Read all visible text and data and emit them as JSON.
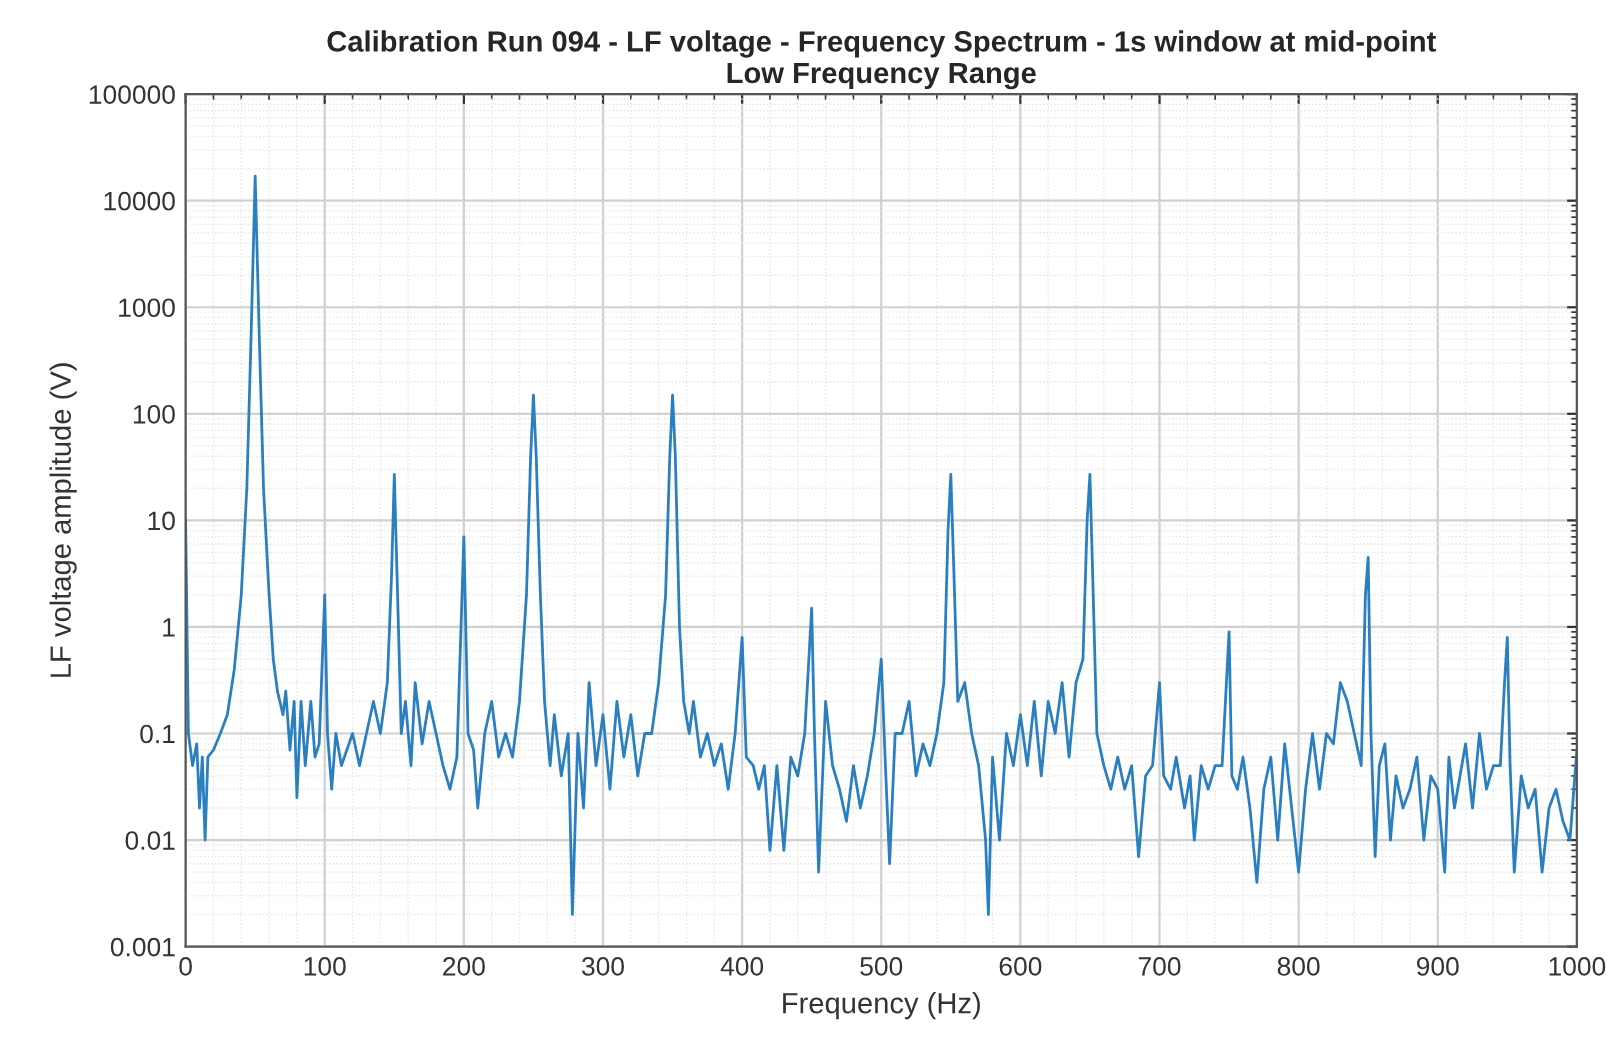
{
  "chart_data": {
    "type": "line",
    "title": "Calibration Run 094 - LF voltage - Frequency Spectrum - 1s window at mid-point\nLow Frequency Range",
    "xlabel": "Frequency (Hz)",
    "ylabel": "LF voltage amplitude (V)",
    "log": "y",
    "grid": true,
    "xlim": [
      0,
      1000
    ],
    "xticks": [
      0,
      100,
      200,
      300,
      400,
      500,
      600,
      700,
      800,
      900,
      1000
    ],
    "ylim": [
      0.001,
      100000
    ],
    "yticks": [
      0.001,
      0.01,
      0.1,
      1,
      10,
      100,
      1000,
      10000,
      100000
    ],
    "series": [
      {
        "color": "#2a7fc1",
        "line_style": "solid",
        "x": [
          0,
          2,
          5,
          8,
          10,
          12,
          14,
          16,
          20,
          25,
          30,
          35,
          40,
          44,
          47,
          50,
          53,
          56,
          60,
          63,
          66,
          70,
          72,
          75,
          78,
          80,
          83,
          86,
          90,
          93,
          96,
          100,
          102,
          105,
          108,
          112,
          120,
          125,
          130,
          135,
          140,
          145,
          148,
          150,
          152,
          155,
          158,
          162,
          165,
          170,
          175,
          180,
          185,
          190,
          195,
          200,
          203,
          207,
          210,
          215,
          220,
          225,
          230,
          235,
          240,
          245,
          248,
          250,
          252,
          255,
          258,
          262,
          265,
          270,
          275,
          278,
          282,
          286,
          290,
          295,
          300,
          305,
          310,
          315,
          320,
          325,
          330,
          335,
          340,
          345,
          348,
          350,
          352,
          355,
          358,
          362,
          365,
          370,
          375,
          380,
          385,
          390,
          395,
          400,
          403,
          408,
          412,
          416,
          420,
          425,
          430,
          435,
          440,
          445,
          450,
          452,
          455,
          460,
          465,
          470,
          475,
          480,
          485,
          490,
          495,
          500,
          503,
          506,
          510,
          515,
          520,
          525,
          530,
          535,
          540,
          545,
          548,
          550,
          552,
          555,
          560,
          565,
          570,
          575,
          577,
          580,
          585,
          590,
          595,
          600,
          605,
          610,
          615,
          620,
          625,
          630,
          635,
          640,
          645,
          648,
          650,
          652,
          655,
          660,
          665,
          670,
          675,
          680,
          685,
          690,
          695,
          700,
          703,
          708,
          712,
          718,
          722,
          725,
          730,
          735,
          740,
          745,
          750,
          752,
          756,
          760,
          765,
          770,
          775,
          780,
          785,
          790,
          795,
          800,
          805,
          810,
          815,
          820,
          825,
          830,
          835,
          840,
          845,
          848,
          850,
          852,
          855,
          858,
          862,
          866,
          870,
          875,
          880,
          885,
          890,
          895,
          900,
          905,
          908,
          912,
          916,
          920,
          925,
          930,
          935,
          940,
          945,
          948,
          950,
          952,
          955,
          960,
          965,
          970,
          975,
          980,
          985,
          990,
          995,
          1000
        ],
        "values": [
          10,
          0.1,
          0.05,
          0.08,
          0.02,
          0.06,
          0.01,
          0.06,
          0.07,
          0.1,
          0.15,
          0.4,
          2,
          20,
          500,
          17000,
          500,
          20,
          2,
          0.5,
          0.25,
          0.15,
          0.25,
          0.07,
          0.2,
          0.025,
          0.2,
          0.05,
          0.2,
          0.06,
          0.08,
          2,
          0.1,
          0.03,
          0.1,
          0.05,
          0.1,
          0.05,
          0.1,
          0.2,
          0.1,
          0.3,
          3,
          27,
          3,
          0.1,
          0.2,
          0.05,
          0.3,
          0.08,
          0.2,
          0.1,
          0.05,
          0.03,
          0.06,
          7,
          0.1,
          0.07,
          0.02,
          0.1,
          0.2,
          0.06,
          0.1,
          0.06,
          0.2,
          2,
          40,
          150,
          40,
          2,
          0.2,
          0.05,
          0.15,
          0.04,
          0.1,
          0.002,
          0.1,
          0.02,
          0.3,
          0.05,
          0.15,
          0.03,
          0.2,
          0.06,
          0.15,
          0.04,
          0.1,
          0.1,
          0.3,
          2,
          40,
          150,
          40,
          1,
          0.2,
          0.1,
          0.2,
          0.06,
          0.1,
          0.05,
          0.08,
          0.03,
          0.1,
          0.8,
          0.06,
          0.05,
          0.03,
          0.05,
          0.008,
          0.05,
          0.008,
          0.06,
          0.04,
          0.1,
          1.5,
          0.1,
          0.005,
          0.2,
          0.05,
          0.03,
          0.015,
          0.05,
          0.02,
          0.04,
          0.1,
          0.5,
          0.05,
          0.006,
          0.1,
          0.1,
          0.2,
          0.04,
          0.08,
          0.05,
          0.1,
          0.3,
          8,
          27,
          4,
          0.2,
          0.3,
          0.1,
          0.05,
          0.01,
          0.002,
          0.06,
          0.01,
          0.1,
          0.05,
          0.15,
          0.05,
          0.2,
          0.04,
          0.2,
          0.1,
          0.3,
          0.06,
          0.3,
          0.5,
          10,
          27,
          3,
          0.1,
          0.05,
          0.03,
          0.06,
          0.03,
          0.05,
          0.007,
          0.04,
          0.05,
          0.3,
          0.04,
          0.03,
          0.06,
          0.02,
          0.04,
          0.01,
          0.05,
          0.03,
          0.05,
          0.05,
          0.9,
          0.04,
          0.03,
          0.06,
          0.02,
          0.004,
          0.03,
          0.06,
          0.01,
          0.08,
          0.02,
          0.005,
          0.03,
          0.1,
          0.03,
          0.1,
          0.08,
          0.3,
          0.2,
          0.1,
          0.05,
          2,
          4.5,
          0.1,
          0.007,
          0.05,
          0.08,
          0.01,
          0.04,
          0.02,
          0.03,
          0.06,
          0.01,
          0.04,
          0.03,
          0.005,
          0.06,
          0.02,
          0.04,
          0.08,
          0.02,
          0.1,
          0.03,
          0.05,
          0.05,
          0.3,
          0.8,
          0.05,
          0.005,
          0.04,
          0.02,
          0.03,
          0.005,
          0.02,
          0.03,
          0.015,
          0.01,
          0.07
        ]
      }
    ]
  }
}
